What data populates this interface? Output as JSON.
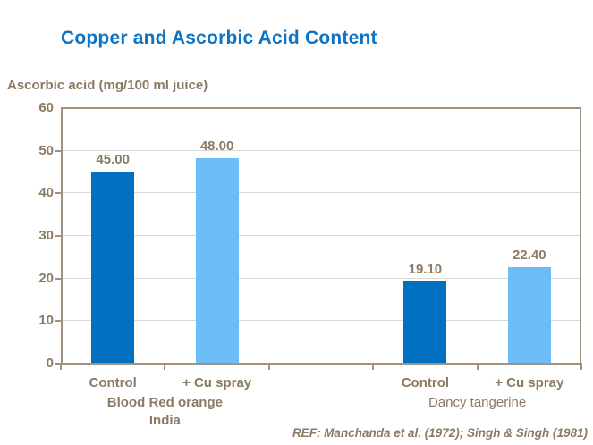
{
  "title": "Copper and Ascorbic Acid Content",
  "y_axis_title": "Ascorbic acid (mg/100 ml juice)",
  "ref_text": "REF: Manchanda et al. (1972); Singh & Singh (1981)",
  "colors": {
    "title_blue": "#0E73C3",
    "brown_text": "#8B7A64",
    "axis_line": "#A09182",
    "gridline": "#D8D8D8",
    "bar_dark_blue": "#0071C1",
    "bar_light_blue": "#6CBCF8"
  },
  "chart_data": {
    "type": "bar",
    "title": "Copper and Ascorbic Acid Content",
    "xlabel": "",
    "ylabel": "Ascorbic acid (mg/100 ml juice)",
    "ylim": [
      0,
      60
    ],
    "yticks": [
      0,
      10,
      20,
      30,
      40,
      50,
      60
    ],
    "grid": true,
    "legend": false,
    "series_colors": {
      "control": "#0071C1",
      "cu_spray": "#6CBCF8"
    },
    "groups": [
      {
        "label": "Blood Red orange India",
        "label_lines": [
          "Blood Red orange",
          "India"
        ],
        "label_bold": true,
        "bars": [
          {
            "category": "Control",
            "value": 45.0,
            "value_label": "45.00",
            "series": "control"
          },
          {
            "category": "+ Cu spray",
            "value": 48.0,
            "value_label": "48.00",
            "series": "cu_spray"
          }
        ]
      },
      {
        "label": "Dancy tangerine",
        "label_lines": [
          "Dancy tangerine"
        ],
        "label_bold": false,
        "bars": [
          {
            "category": "Control",
            "value": 19.1,
            "value_label": "19.10",
            "series": "control"
          },
          {
            "category": "+ Cu spray",
            "value": 22.4,
            "value_label": "22.40",
            "series": "cu_spray"
          }
        ]
      }
    ]
  }
}
